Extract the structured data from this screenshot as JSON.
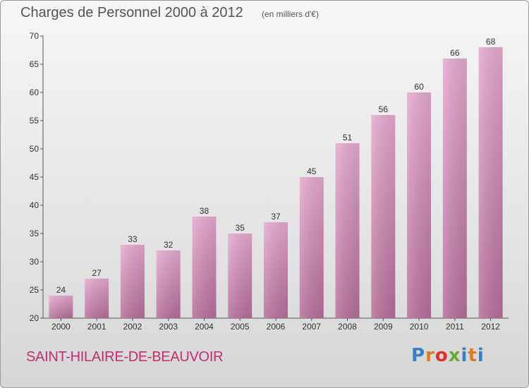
{
  "header": {
    "title": "Charges de Personnel 2000 à 2012",
    "subtitle": "(en milliers d'€)"
  },
  "footer": {
    "city": "SAINT-HILAIRE-DE-BEAUVOIR",
    "logo_text": "Proxiti",
    "logo_colors": [
      "#3a7fc4",
      "#e07a1f",
      "#e0302a",
      "#6aa83a",
      "#3a7fc4",
      "#e07a1f",
      "#3a7fc4"
    ]
  },
  "colors": {
    "bar_top": "#e6a9cf",
    "bar_bottom": "#b56e99",
    "city_text": "#c0306a"
  },
  "chart_data": {
    "type": "bar",
    "title": "Charges de Personnel 2000 à 2012",
    "subtitle": "(en milliers d'€)",
    "categories": [
      "2000",
      "2001",
      "2002",
      "2003",
      "2004",
      "2005",
      "2006",
      "2007",
      "2008",
      "2009",
      "2010",
      "2011",
      "2012"
    ],
    "values": [
      24,
      27,
      33,
      32,
      38,
      35,
      37,
      45,
      51,
      56,
      60,
      66,
      68
    ],
    "ylim": [
      20,
      70
    ],
    "yticks": [
      20,
      25,
      30,
      35,
      40,
      45,
      50,
      55,
      60,
      65,
      70
    ],
    "grid": false,
    "xlabel": "",
    "ylabel": ""
  }
}
